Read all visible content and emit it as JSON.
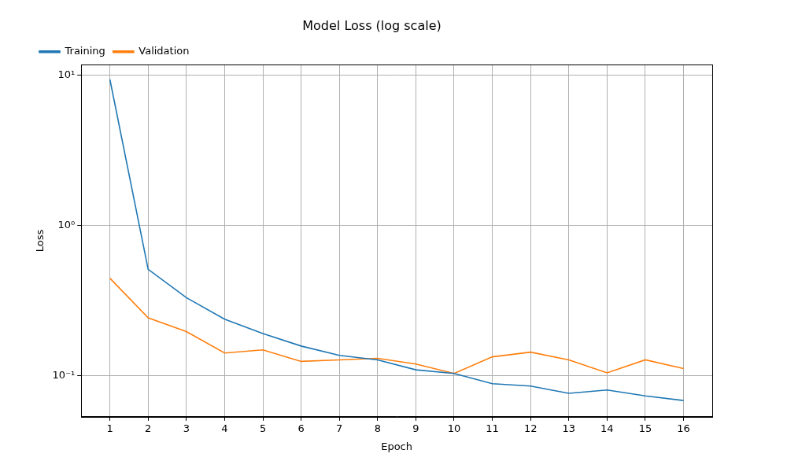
{
  "chart_data": {
    "type": "line",
    "title": "Model Loss (log scale)",
    "x_label": "Epoch",
    "y_label": "Loss",
    "x": [
      1,
      2,
      3,
      4,
      5,
      6,
      7,
      8,
      9,
      10,
      11,
      12,
      13,
      14,
      15,
      16
    ],
    "series": [
      {
        "name": "Training",
        "color": "#1f77b4",
        "values": [
          9.4,
          0.51,
          0.33,
          0.237,
          0.19,
          0.157,
          0.136,
          0.127,
          0.109,
          0.103,
          0.088,
          0.085,
          0.076,
          0.08,
          0.073,
          0.068
        ]
      },
      {
        "name": "Validation",
        "color": "#ff7f0e",
        "values": [
          0.445,
          0.242,
          0.196,
          0.141,
          0.148,
          0.124,
          0.127,
          0.13,
          0.119,
          0.103,
          0.133,
          0.143,
          0.127,
          0.104,
          0.127,
          0.111
        ]
      }
    ],
    "xlim": [
      0.25,
      16.75
    ],
    "xticks": [
      1,
      2,
      3,
      4,
      5,
      6,
      7,
      8,
      9,
      10,
      11,
      12,
      13,
      14,
      15,
      16
    ],
    "ylim": [
      0.053,
      11.8
    ],
    "yticks": [
      {
        "value": 0.1,
        "label": "10⁻¹"
      },
      {
        "value": 1,
        "label": "10⁰"
      },
      {
        "value": 10,
        "label": "10¹"
      }
    ],
    "log": "y",
    "grid": true,
    "legend": "upper left"
  }
}
